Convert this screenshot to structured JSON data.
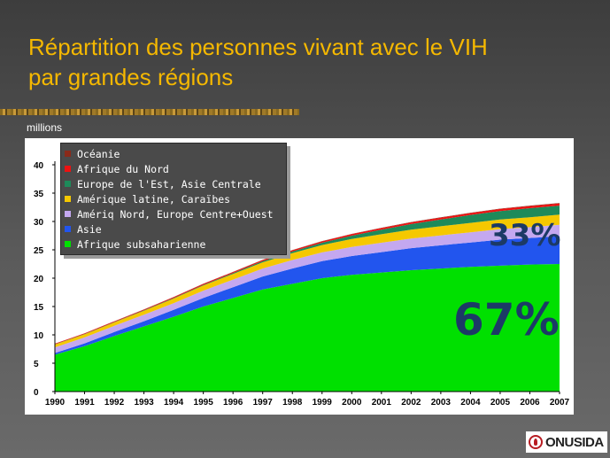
{
  "slide": {
    "title_line1": "Répartition des personnes vivant avec le VIH",
    "title_line2": "par grandes régions",
    "units": "millions",
    "logo_text": "ONUSIDA"
  },
  "colors": {
    "title": "#f5b800",
    "pct_text": "#1c3a66"
  },
  "chart_data": {
    "type": "area",
    "stacked": true,
    "x": [
      "1990",
      "1991",
      "1992",
      "1993",
      "1994",
      "1995",
      "1996",
      "1997",
      "1998",
      "1999",
      "2000",
      "2001",
      "2002",
      "2003",
      "2004",
      "2005",
      "2006",
      "2007"
    ],
    "ylim": [
      0,
      40
    ],
    "yticks": [
      0,
      5,
      10,
      15,
      20,
      25,
      30,
      35,
      40
    ],
    "legend_position": "top-left",
    "series": [
      {
        "name": "Afrique subsaharienne",
        "color": "#00e000",
        "values": [
          6.5,
          8.0,
          9.8,
          11.5,
          13.2,
          15.0,
          16.5,
          18.0,
          19.0,
          20.0,
          20.6,
          21.0,
          21.4,
          21.7,
          22.0,
          22.2,
          22.4,
          22.5
        ]
      },
      {
        "name": "Asie",
        "color": "#2255ee",
        "values": [
          0.3,
          0.5,
          0.7,
          0.9,
          1.2,
          1.5,
          1.9,
          2.3,
          2.7,
          3.0,
          3.3,
          3.6,
          3.9,
          4.1,
          4.3,
          4.6,
          4.7,
          4.9
        ]
      },
      {
        "name": "Amériq Nord, Europe Centre+Ouest",
        "color": "#c4a8f0",
        "values": [
          1.0,
          1.05,
          1.1,
          1.15,
          1.2,
          1.3,
          1.35,
          1.4,
          1.5,
          1.55,
          1.6,
          1.65,
          1.7,
          1.75,
          1.8,
          1.85,
          1.9,
          2.0
        ]
      },
      {
        "name": "Amérique latine, Caraïbes",
        "color": "#f5c800",
        "values": [
          0.5,
          0.55,
          0.6,
          0.7,
          0.8,
          0.9,
          1.0,
          1.1,
          1.2,
          1.3,
          1.4,
          1.5,
          1.55,
          1.6,
          1.65,
          1.7,
          1.75,
          1.8
        ]
      },
      {
        "name": "Europe de l'Est, Asie Centrale",
        "color": "#1e8a5a",
        "values": [
          0.05,
          0.06,
          0.07,
          0.08,
          0.1,
          0.12,
          0.15,
          0.2,
          0.3,
          0.4,
          0.6,
          0.8,
          1.0,
          1.2,
          1.4,
          1.5,
          1.6,
          1.6
        ]
      },
      {
        "name": "Afrique du Nord",
        "color": "#ee1111",
        "values": [
          0.1,
          0.1,
          0.12,
          0.13,
          0.15,
          0.17,
          0.18,
          0.2,
          0.22,
          0.24,
          0.26,
          0.28,
          0.3,
          0.32,
          0.33,
          0.35,
          0.37,
          0.38
        ]
      },
      {
        "name": "Océanie",
        "color": "#8a2a1a",
        "values": [
          0.01,
          0.01,
          0.02,
          0.02,
          0.02,
          0.03,
          0.03,
          0.04,
          0.04,
          0.05,
          0.05,
          0.06,
          0.06,
          0.07,
          0.07,
          0.07,
          0.08,
          0.08
        ]
      }
    ],
    "annotations": [
      {
        "text": "33%",
        "color": "#1c3a66"
      },
      {
        "text": "67%",
        "color": "#1c3a66"
      }
    ]
  }
}
